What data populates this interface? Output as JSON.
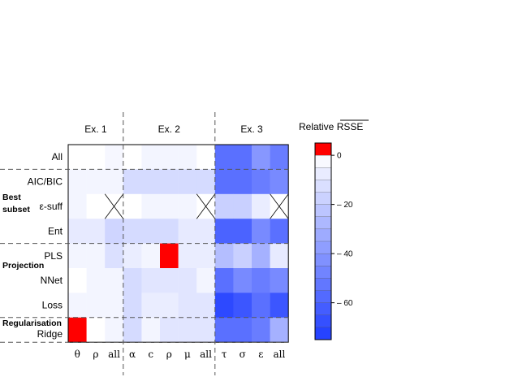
{
  "chart_data": {
    "type": "heatmap",
    "title": "",
    "legend_title": "Relative RSSE",
    "legend_placement": "right",
    "color_range": [
      -75,
      5
    ],
    "colorbar_ticks": [
      0,
      -20,
      -40,
      -60
    ],
    "colorbar_tick_labels": [
      "0",
      "– 20",
      "– 40",
      "– 60"
    ],
    "groups": [
      {
        "label": "Ex. 1",
        "columns": [
          "θ",
          "ρ",
          "all"
        ]
      },
      {
        "label": "Ex. 2",
        "columns": [
          "α",
          "c",
          "ρ",
          "μ",
          "all"
        ]
      },
      {
        "label": "Ex. 3",
        "columns": [
          "τ",
          "σ",
          "ε",
          "all"
        ]
      }
    ],
    "row_groups": [
      {
        "label": "",
        "rows": [
          "All"
        ]
      },
      {
        "label": "Best subset",
        "label_lines": [
          "Best",
          "subset"
        ],
        "rows": [
          "AIC/BIC",
          "ε-suff",
          "Ent"
        ]
      },
      {
        "label": "Projection",
        "rows": [
          "PLS",
          "NNet",
          "Loss"
        ]
      },
      {
        "label": "Regularisation",
        "rows": [
          "Ridge"
        ]
      }
    ],
    "rows": [
      "All",
      "AIC/BIC",
      "ε-suff",
      "Ent",
      "PLS",
      "NNet",
      "Loss",
      "Ridge"
    ],
    "columns": [
      "θ",
      "ρ",
      "all",
      "α",
      "c",
      "ρ",
      "μ",
      "all",
      "τ",
      "σ",
      "ε",
      "all"
    ],
    "values": [
      [
        0,
        0,
        -3,
        0,
        -4,
        -4,
        -4,
        0,
        -55,
        -55,
        -40,
        -50
      ],
      [
        -4,
        -4,
        -4,
        -14,
        -14,
        -14,
        -14,
        -14,
        -55,
        -55,
        -50,
        -45
      ],
      [
        -4,
        0,
        null,
        0,
        -4,
        -4,
        -4,
        null,
        -18,
        -18,
        -7,
        null
      ],
      [
        -8,
        -8,
        -16,
        -14,
        -14,
        -14,
        -8,
        -8,
        -60,
        -60,
        -45,
        -55
      ],
      [
        -4,
        -4,
        -12,
        -7,
        -4,
        5,
        -7,
        -7,
        -25,
        -18,
        -30,
        -8
      ],
      [
        0,
        -4,
        -4,
        -14,
        -10,
        -10,
        -10,
        -4,
        -55,
        -45,
        -50,
        -45
      ],
      [
        -4,
        -4,
        -4,
        -14,
        -7,
        -7,
        -10,
        -10,
        -70,
        -65,
        -55,
        -65
      ],
      [
        5,
        0,
        -4,
        -14,
        -4,
        -10,
        -10,
        -10,
        -55,
        -55,
        -50,
        -30
      ]
    ]
  }
}
